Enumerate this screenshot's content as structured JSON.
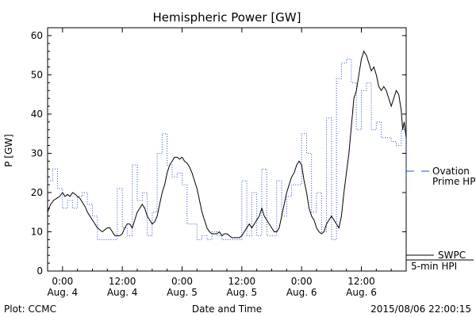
{
  "chart_data": {
    "type": "line",
    "title": "Hemispheric Power [GW]",
    "ylabel": "P [GW]",
    "xlabel": "Date and Time",
    "ylim": [
      0,
      62
    ],
    "yticks": [
      0,
      10,
      20,
      30,
      40,
      50,
      60
    ],
    "xlim_hours": [
      -3,
      69
    ],
    "xticks": [
      {
        "hour": 0,
        "time": "0:00",
        "date": "Aug. 4"
      },
      {
        "hour": 12,
        "time": "12:00",
        "date": "Aug. 4"
      },
      {
        "hour": 24,
        "time": "0:00",
        "date": "Aug. 5"
      },
      {
        "hour": 36,
        "time": "12:00",
        "date": "Aug. 5"
      },
      {
        "hour": 48,
        "time": "0:00",
        "date": "Aug. 6"
      },
      {
        "hour": 60,
        "time": "12:00",
        "date": "Aug. 6"
      }
    ],
    "series": [
      {
        "name": "SWPC 5-min HPI",
        "style": "solid",
        "color": "#000000",
        "points": [
          [
            -3,
            15
          ],
          [
            -2.4,
            17
          ],
          [
            -1.8,
            18
          ],
          [
            -1.2,
            18.5
          ],
          [
            -0.6,
            19
          ],
          [
            0,
            20
          ],
          [
            0.5,
            19
          ],
          [
            1,
            19.5
          ],
          [
            1.5,
            19
          ],
          [
            2,
            20
          ],
          [
            2.6,
            19.5
          ],
          [
            3,
            19
          ],
          [
            3.5,
            18.5
          ],
          [
            4,
            17.5
          ],
          [
            4.5,
            16.5
          ],
          [
            5,
            15
          ],
          [
            5.5,
            14
          ],
          [
            6,
            13
          ],
          [
            6.5,
            12
          ],
          [
            7,
            11
          ],
          [
            7.5,
            10.5
          ],
          [
            8,
            10
          ],
          [
            8.5,
            10.5
          ],
          [
            9,
            11
          ],
          [
            9.5,
            11
          ],
          [
            10,
            10
          ],
          [
            10.5,
            9
          ],
          [
            11,
            9
          ],
          [
            11.5,
            9
          ],
          [
            12,
            9.5
          ],
          [
            12.5,
            11
          ],
          [
            13,
            12
          ],
          [
            13.5,
            12
          ],
          [
            14,
            11
          ],
          [
            14.5,
            13
          ],
          [
            15,
            15
          ],
          [
            15.5,
            16
          ],
          [
            16,
            17
          ],
          [
            16.5,
            16
          ],
          [
            17,
            14
          ],
          [
            17.5,
            13
          ],
          [
            18,
            12
          ],
          [
            18.5,
            12.5
          ],
          [
            19,
            14
          ],
          [
            19.5,
            17
          ],
          [
            20,
            20
          ],
          [
            20.5,
            22
          ],
          [
            21,
            25
          ],
          [
            21.5,
            27
          ],
          [
            22,
            28
          ],
          [
            22.5,
            29
          ],
          [
            23,
            29
          ],
          [
            23.5,
            28.5
          ],
          [
            24,
            29
          ],
          [
            24.5,
            28
          ],
          [
            25,
            27.5
          ],
          [
            25.5,
            26.5
          ],
          [
            26,
            25
          ],
          [
            26.5,
            23
          ],
          [
            27,
            21
          ],
          [
            27.5,
            18
          ],
          [
            28,
            15
          ],
          [
            28.5,
            13
          ],
          [
            29,
            11
          ],
          [
            29.5,
            10
          ],
          [
            30,
            9.5
          ],
          [
            31,
            9.5
          ],
          [
            31.5,
            10
          ],
          [
            32,
            9
          ],
          [
            32.5,
            9.5
          ],
          [
            33,
            9.5
          ],
          [
            33.5,
            9
          ],
          [
            34,
            8.5
          ],
          [
            35,
            8.5
          ],
          [
            35.5,
            8.5
          ],
          [
            36,
            9
          ],
          [
            36.5,
            10
          ],
          [
            37,
            11
          ],
          [
            37.5,
            12
          ],
          [
            38,
            11
          ],
          [
            38.5,
            12
          ],
          [
            39,
            13
          ],
          [
            39.5,
            14
          ],
          [
            40,
            16
          ],
          [
            40.5,
            14
          ],
          [
            41,
            13
          ],
          [
            41.5,
            12
          ],
          [
            42,
            11
          ],
          [
            42.5,
            10
          ],
          [
            43,
            10
          ],
          [
            43.5,
            11
          ],
          [
            44,
            14
          ],
          [
            44.5,
            17
          ],
          [
            45,
            20
          ],
          [
            45.5,
            22
          ],
          [
            46,
            24
          ],
          [
            46.5,
            25
          ],
          [
            47,
            27
          ],
          [
            47.5,
            28
          ],
          [
            48,
            27
          ],
          [
            48.5,
            23
          ],
          [
            49,
            20
          ],
          [
            49.5,
            16
          ],
          [
            50,
            14
          ],
          [
            50.5,
            13
          ],
          [
            51,
            11
          ],
          [
            51.5,
            10
          ],
          [
            52,
            9.5
          ],
          [
            52.5,
            10
          ],
          [
            53,
            12
          ],
          [
            53.5,
            13
          ],
          [
            54,
            14
          ],
          [
            54.5,
            13
          ],
          [
            55,
            12
          ],
          [
            55.5,
            11
          ],
          [
            56,
            14
          ],
          [
            56.5,
            20
          ],
          [
            57,
            25
          ],
          [
            57.5,
            30
          ],
          [
            58,
            37
          ],
          [
            58.5,
            44
          ],
          [
            59,
            46
          ],
          [
            59.5,
            50
          ],
          [
            60,
            54
          ],
          [
            60.5,
            56
          ],
          [
            61,
            55
          ],
          [
            61.5,
            53
          ],
          [
            62,
            51
          ],
          [
            62.5,
            52
          ],
          [
            63,
            50
          ],
          [
            63.5,
            47
          ],
          [
            64,
            46
          ],
          [
            64.5,
            47
          ],
          [
            65,
            46
          ],
          [
            65.5,
            44
          ],
          [
            66,
            42
          ],
          [
            66.5,
            44
          ],
          [
            67,
            46
          ],
          [
            67.5,
            45
          ],
          [
            68,
            41
          ],
          [
            68.3,
            36
          ],
          [
            68.6,
            38
          ],
          [
            69,
            34
          ]
        ]
      },
      {
        "name": "Ovation Prime HPI",
        "style": "dotted",
        "color": "#1f4fc8",
        "points": [
          [
            -3,
            23
          ],
          [
            -2,
            26
          ],
          [
            -1,
            21
          ],
          [
            0,
            16
          ],
          [
            1,
            18
          ],
          [
            2,
            16
          ],
          [
            3,
            19
          ],
          [
            4,
            20
          ],
          [
            5,
            17
          ],
          [
            6,
            14
          ],
          [
            7,
            8
          ],
          [
            8,
            8
          ],
          [
            9,
            8
          ],
          [
            10,
            8
          ],
          [
            11,
            21
          ],
          [
            12,
            11
          ],
          [
            13,
            9
          ],
          [
            14,
            27
          ],
          [
            15,
            18
          ],
          [
            16,
            20
          ],
          [
            17,
            9
          ],
          [
            18,
            15
          ],
          [
            19,
            30
          ],
          [
            20,
            35
          ],
          [
            21,
            27
          ],
          [
            22,
            24
          ],
          [
            23,
            25
          ],
          [
            24,
            22
          ],
          [
            25,
            12
          ],
          [
            26,
            12
          ],
          [
            27,
            8
          ],
          [
            28,
            9
          ],
          [
            29,
            8
          ],
          [
            30,
            10
          ],
          [
            31,
            9
          ],
          [
            32,
            8
          ],
          [
            33,
            8
          ],
          [
            34,
            8
          ],
          [
            35,
            8
          ],
          [
            36,
            23
          ],
          [
            37,
            9
          ],
          [
            38,
            20
          ],
          [
            39,
            9
          ],
          [
            40,
            26
          ],
          [
            41,
            9
          ],
          [
            42,
            9
          ],
          [
            43,
            23
          ],
          [
            44,
            14
          ],
          [
            45,
            19
          ],
          [
            46,
            22
          ],
          [
            47,
            22
          ],
          [
            48,
            35
          ],
          [
            49,
            30
          ],
          [
            50,
            15
          ],
          [
            51,
            20
          ],
          [
            52,
            10
          ],
          [
            53,
            39
          ],
          [
            54,
            8
          ],
          [
            55,
            49
          ],
          [
            56,
            53
          ],
          [
            57,
            54
          ],
          [
            58,
            48
          ],
          [
            59,
            36
          ],
          [
            60,
            46
          ],
          [
            61,
            48
          ],
          [
            62,
            36
          ],
          [
            63,
            38
          ],
          [
            64,
            34
          ],
          [
            65,
            34
          ],
          [
            66,
            33
          ],
          [
            67,
            32
          ],
          [
            68,
            36
          ],
          [
            69,
            19
          ]
        ]
      }
    ],
    "legend_placement": "right",
    "legend": [
      {
        "series": "Ovation Prime HPI",
        "lines": [
          "Ovation",
          "Prime HPI"
        ]
      },
      {
        "series": "SWPC 5-min HPI",
        "lines": [
          "SWPC",
          "5-min HPI"
        ]
      }
    ],
    "footer_left": "Plot: CCMC",
    "footer_right": "2015/08/06 22:00:15",
    "grid": false
  }
}
